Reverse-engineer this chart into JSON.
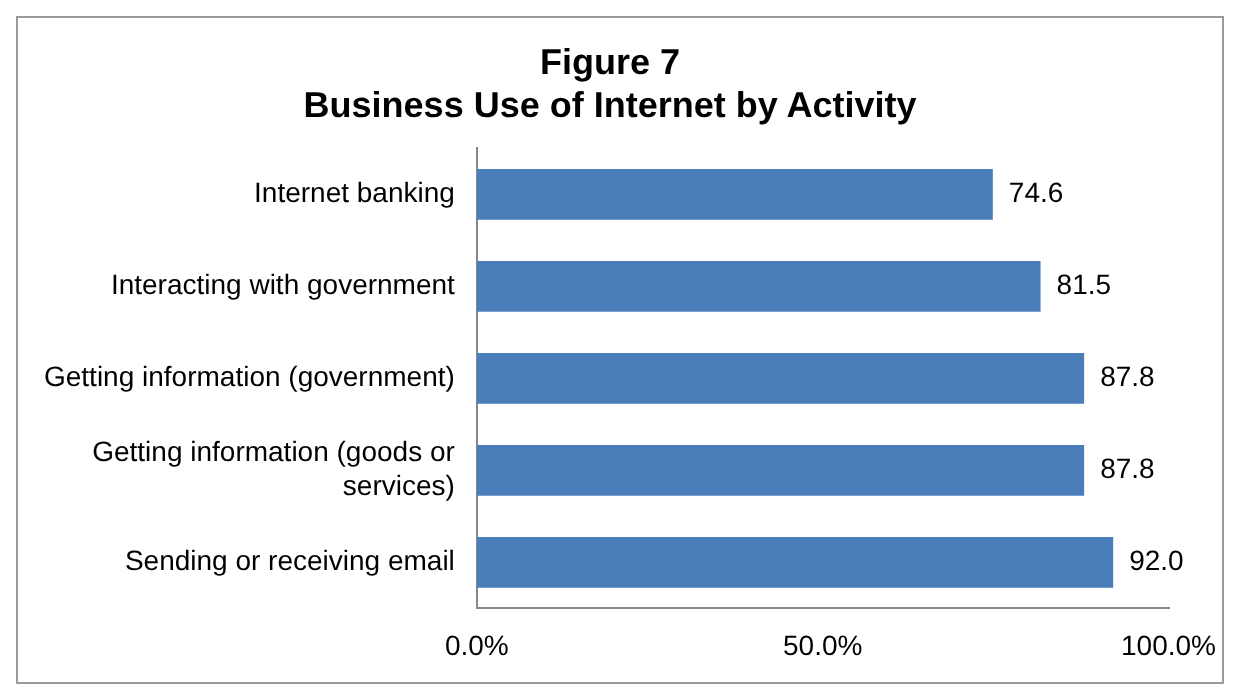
{
  "chart_data": {
    "type": "bar",
    "orientation": "horizontal",
    "title": "Figure 7",
    "subtitle": "Business Use of Internet by Activity",
    "categories": [
      "Internet banking",
      "Interacting with government",
      "Getting information (government)",
      "Getting information (goods or services)",
      "Sending or receiving email"
    ],
    "values": [
      74.6,
      81.5,
      87.8,
      87.8,
      92.0
    ],
    "value_labels": [
      "74.6",
      "81.5",
      "87.8",
      "87.8",
      "92.0"
    ],
    "color": "#4a7ebb",
    "xlim": [
      0,
      100
    ],
    "xticks": [
      {
        "value": 0,
        "label": "0.0%"
      },
      {
        "value": 50,
        "label": "50.0%"
      },
      {
        "value": 100,
        "label": "100.0%"
      }
    ],
    "grid": false,
    "legend": false
  }
}
